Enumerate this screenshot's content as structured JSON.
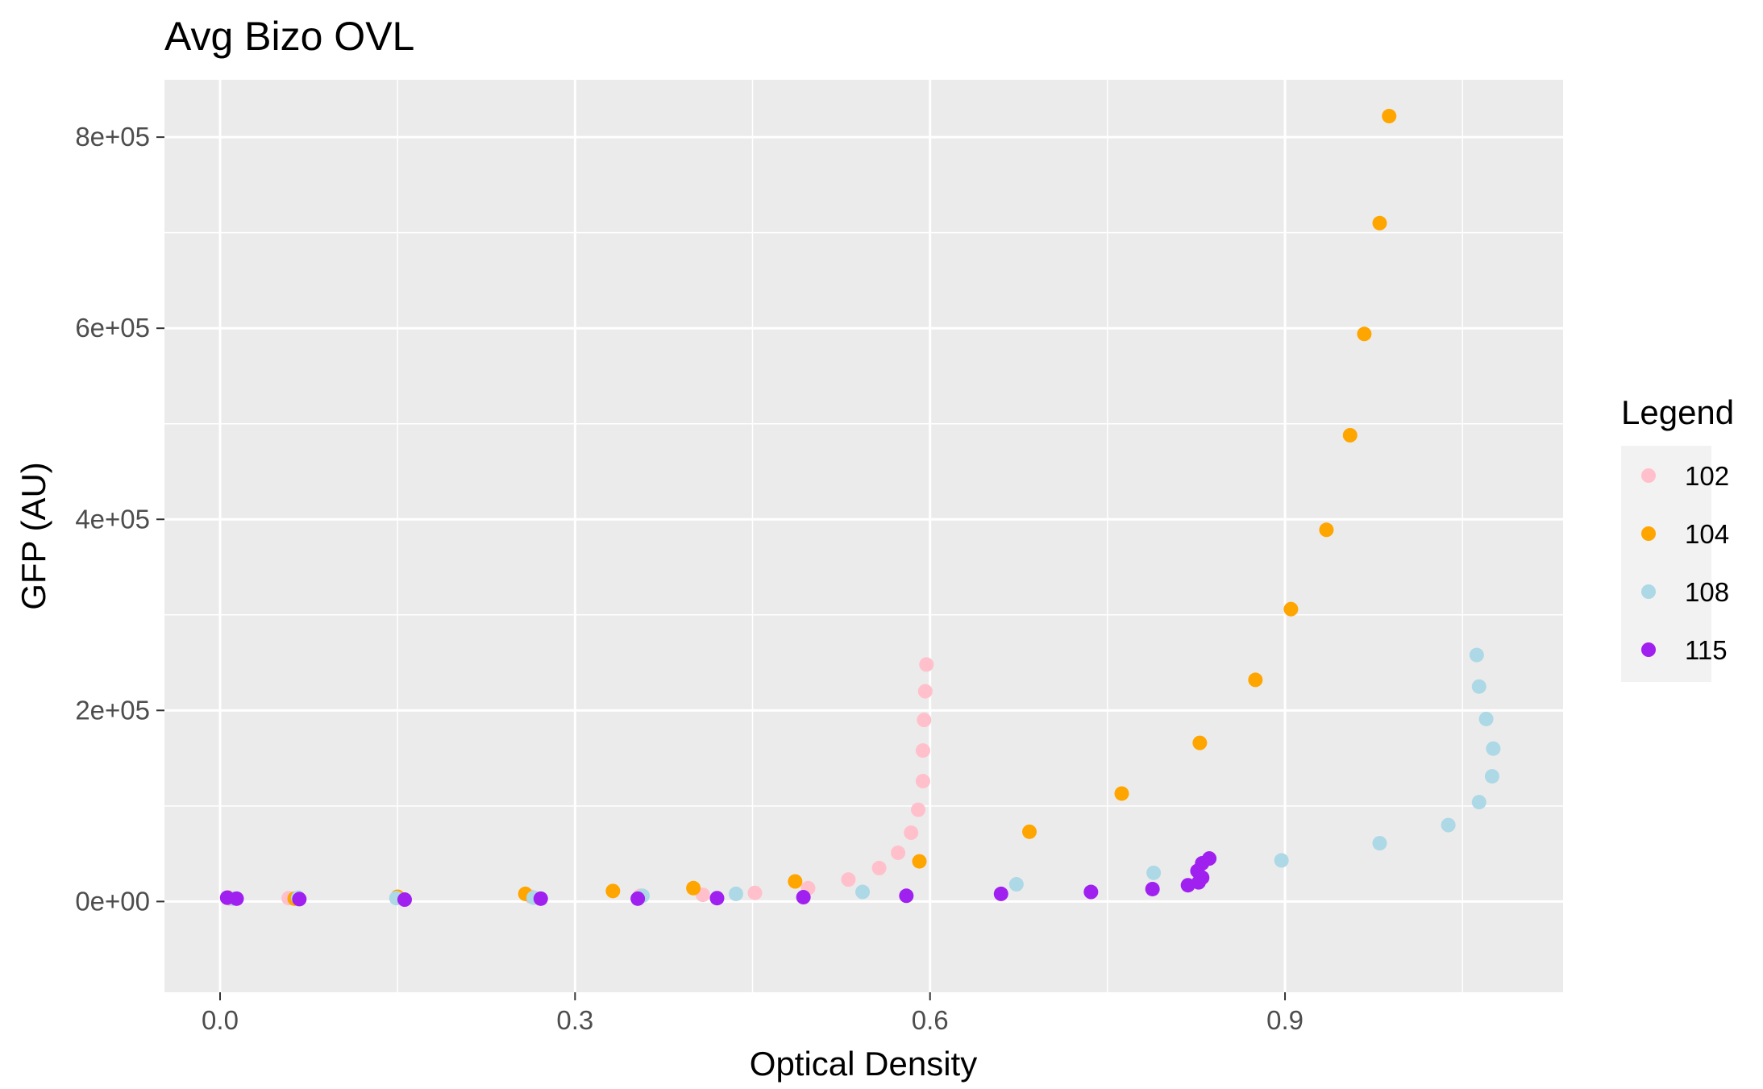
{
  "chart_data": {
    "type": "scatter",
    "title": "Avg Bizo OVL",
    "xlabel": "Optical Density",
    "ylabel": "GFP (AU)",
    "xlim": [
      -0.047,
      1.135
    ],
    "ylim": [
      -95000,
      860000
    ],
    "x_ticks": [
      0.0,
      0.3,
      0.6,
      0.9
    ],
    "x_tick_labels": [
      "0.0",
      "0.3",
      "0.6",
      "0.9"
    ],
    "y_ticks": [
      0,
      200000,
      400000,
      600000,
      800000
    ],
    "y_tick_labels": [
      "0e+00",
      "2e+05",
      "4e+05",
      "6e+05",
      "8e+05"
    ],
    "grid": true,
    "legend": {
      "title": "Legend",
      "position": "right"
    },
    "series": [
      {
        "name": "102",
        "color": "#FFC0CB",
        "points": [
          [
            0.008,
            3000
          ],
          [
            0.058,
            3500
          ],
          [
            0.15,
            4000
          ],
          [
            0.263,
            5000
          ],
          [
            0.355,
            6000
          ],
          [
            0.408,
            7000
          ],
          [
            0.452,
            9000
          ],
          [
            0.497,
            14000
          ],
          [
            0.531,
            23000
          ],
          [
            0.557,
            35000
          ],
          [
            0.573,
            51000
          ],
          [
            0.584,
            72000
          ],
          [
            0.59,
            96000
          ],
          [
            0.594,
            126000
          ],
          [
            0.594,
            158000
          ],
          [
            0.595,
            190000
          ],
          [
            0.596,
            220000
          ],
          [
            0.597,
            248000
          ]
        ]
      },
      {
        "name": "104",
        "color": "#FFA500",
        "points": [
          [
            0.007,
            4000
          ],
          [
            0.063,
            3000
          ],
          [
            0.15,
            5000
          ],
          [
            0.258,
            8000
          ],
          [
            0.332,
            11000
          ],
          [
            0.4,
            14000
          ],
          [
            0.486,
            21000
          ],
          [
            0.591,
            42000
          ],
          [
            0.684,
            73000
          ],
          [
            0.762,
            113000
          ],
          [
            0.828,
            166000
          ],
          [
            0.875,
            232000
          ],
          [
            0.905,
            306000
          ],
          [
            0.935,
            389000
          ],
          [
            0.955,
            488000
          ],
          [
            0.967,
            594000
          ],
          [
            0.98,
            710000
          ],
          [
            0.988,
            822000
          ]
        ]
      },
      {
        "name": "108",
        "color": "#ADD8E6",
        "points": [
          [
            0.011,
            3000
          ],
          [
            0.066,
            4000
          ],
          [
            0.149,
            3500
          ],
          [
            0.265,
            4000
          ],
          [
            0.357,
            6000
          ],
          [
            0.436,
            8000
          ],
          [
            0.543,
            10000
          ],
          [
            0.673,
            18000
          ],
          [
            0.789,
            30000
          ],
          [
            0.897,
            43000
          ],
          [
            0.98,
            61000
          ],
          [
            1.038,
            80000
          ],
          [
            1.064,
            104000
          ],
          [
            1.075,
            131000
          ],
          [
            1.076,
            160000
          ],
          [
            1.07,
            191000
          ],
          [
            1.064,
            225000
          ],
          [
            1.062,
            258000
          ]
        ]
      },
      {
        "name": "115",
        "color": "#A020F0",
        "points": [
          [
            0.006,
            4000
          ],
          [
            0.014,
            3000
          ],
          [
            0.067,
            2500
          ],
          [
            0.156,
            2000
          ],
          [
            0.271,
            3000
          ],
          [
            0.353,
            3000
          ],
          [
            0.42,
            3500
          ],
          [
            0.493,
            4500
          ],
          [
            0.58,
            6000
          ],
          [
            0.66,
            8000
          ],
          [
            0.736,
            10000
          ],
          [
            0.788,
            13000
          ],
          [
            0.818,
            17000
          ],
          [
            0.827,
            20000
          ],
          [
            0.83,
            25000
          ],
          [
            0.826,
            32000
          ],
          [
            0.83,
            40000
          ],
          [
            0.836,
            45000
          ]
        ]
      }
    ]
  }
}
